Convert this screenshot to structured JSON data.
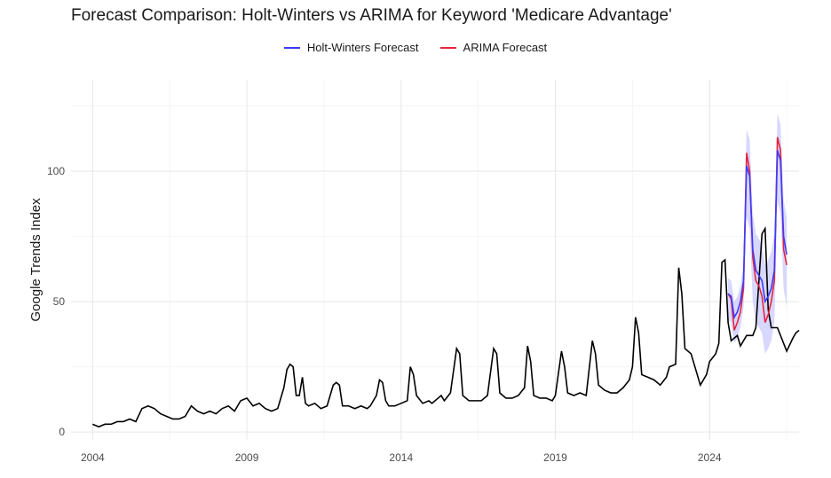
{
  "chart_data": {
    "type": "line",
    "title": "Forecast Comparison: Holt-Winters vs ARIMA for Keyword 'Medicare Advantage'",
    "xlabel": "",
    "ylabel": "Google Trends Index",
    "xlim": [
      2003.3,
      2026.9
    ],
    "ylim": [
      -3,
      135
    ],
    "x_ticks": [
      2004,
      2009,
      2014,
      2019,
      2024
    ],
    "y_ticks": [
      0,
      50,
      100
    ],
    "grid": true,
    "legend": "top-center",
    "series": [
      {
        "name": "",
        "color": "#000000",
        "points": [
          [
            2004.0,
            3
          ],
          [
            2004.2,
            2
          ],
          [
            2004.4,
            3
          ],
          [
            2004.6,
            3
          ],
          [
            2004.8,
            4
          ],
          [
            2005.0,
            4
          ],
          [
            2005.2,
            5
          ],
          [
            2005.4,
            4
          ],
          [
            2005.6,
            9
          ],
          [
            2005.8,
            10
          ],
          [
            2006.0,
            9
          ],
          [
            2006.2,
            7
          ],
          [
            2006.4,
            6
          ],
          [
            2006.6,
            5
          ],
          [
            2006.8,
            5
          ],
          [
            2007.0,
            6
          ],
          [
            2007.2,
            10
          ],
          [
            2007.4,
            8
          ],
          [
            2007.6,
            7
          ],
          [
            2007.8,
            8
          ],
          [
            2008.0,
            7
          ],
          [
            2008.2,
            9
          ],
          [
            2008.4,
            10
          ],
          [
            2008.6,
            8
          ],
          [
            2008.8,
            12
          ],
          [
            2009.0,
            13
          ],
          [
            2009.2,
            10
          ],
          [
            2009.4,
            11
          ],
          [
            2009.6,
            9
          ],
          [
            2009.8,
            8
          ],
          [
            2010.0,
            9
          ],
          [
            2010.2,
            17
          ],
          [
            2010.3,
            24
          ],
          [
            2010.4,
            26
          ],
          [
            2010.5,
            25
          ],
          [
            2010.6,
            14
          ],
          [
            2010.7,
            14
          ],
          [
            2010.8,
            21
          ],
          [
            2010.9,
            11
          ],
          [
            2011.0,
            10
          ],
          [
            2011.2,
            11
          ],
          [
            2011.4,
            9
          ],
          [
            2011.6,
            10
          ],
          [
            2011.8,
            18
          ],
          [
            2011.9,
            19
          ],
          [
            2012.0,
            18
          ],
          [
            2012.1,
            10
          ],
          [
            2012.3,
            10
          ],
          [
            2012.5,
            9
          ],
          [
            2012.7,
            10
          ],
          [
            2012.9,
            9
          ],
          [
            2013.0,
            10
          ],
          [
            2013.2,
            14
          ],
          [
            2013.3,
            20
          ],
          [
            2013.4,
            19
          ],
          [
            2013.5,
            12
          ],
          [
            2013.6,
            10
          ],
          [
            2013.8,
            10
          ],
          [
            2014.0,
            11
          ],
          [
            2014.2,
            12
          ],
          [
            2014.3,
            25
          ],
          [
            2014.4,
            22
          ],
          [
            2014.5,
            14
          ],
          [
            2014.7,
            11
          ],
          [
            2014.9,
            12
          ],
          [
            2015.0,
            11
          ],
          [
            2015.2,
            13
          ],
          [
            2015.3,
            14
          ],
          [
            2015.4,
            12
          ],
          [
            2015.6,
            15
          ],
          [
            2015.8,
            32
          ],
          [
            2015.9,
            30
          ],
          [
            2016.0,
            14
          ],
          [
            2016.2,
            12
          ],
          [
            2016.4,
            12
          ],
          [
            2016.6,
            12
          ],
          [
            2016.8,
            14
          ],
          [
            2017.0,
            32
          ],
          [
            2017.1,
            30
          ],
          [
            2017.2,
            15
          ],
          [
            2017.4,
            13
          ],
          [
            2017.6,
            13
          ],
          [
            2017.8,
            14
          ],
          [
            2018.0,
            17
          ],
          [
            2018.1,
            33
          ],
          [
            2018.2,
            27
          ],
          [
            2018.3,
            14
          ],
          [
            2018.5,
            13
          ],
          [
            2018.7,
            13
          ],
          [
            2018.9,
            12
          ],
          [
            2019.0,
            14
          ],
          [
            2019.2,
            31
          ],
          [
            2019.3,
            25
          ],
          [
            2019.4,
            15
          ],
          [
            2019.6,
            14
          ],
          [
            2019.8,
            15
          ],
          [
            2020.0,
            14
          ],
          [
            2020.2,
            35
          ],
          [
            2020.3,
            30
          ],
          [
            2020.4,
            18
          ],
          [
            2020.6,
            16
          ],
          [
            2020.8,
            15
          ],
          [
            2021.0,
            15
          ],
          [
            2021.2,
            17
          ],
          [
            2021.4,
            20
          ],
          [
            2021.5,
            25
          ],
          [
            2021.6,
            44
          ],
          [
            2021.7,
            38
          ],
          [
            2021.8,
            22
          ],
          [
            2022.0,
            21
          ],
          [
            2022.2,
            20
          ],
          [
            2022.4,
            18
          ],
          [
            2022.6,
            21
          ],
          [
            2022.7,
            25
          ],
          [
            2022.9,
            26
          ],
          [
            2023.0,
            63
          ],
          [
            2023.1,
            53
          ],
          [
            2023.2,
            32
          ],
          [
            2023.4,
            30
          ],
          [
            2023.6,
            22
          ],
          [
            2023.7,
            18
          ],
          [
            2023.9,
            22
          ],
          [
            2024.0,
            27
          ],
          [
            2024.2,
            30
          ],
          [
            2024.3,
            34
          ],
          [
            2024.4,
            65
          ],
          [
            2024.5,
            66
          ],
          [
            2024.6,
            42
          ],
          [
            2024.7,
            35
          ],
          [
            2024.9,
            37
          ],
          [
            2025.0,
            33
          ],
          [
            2025.2,
            37
          ],
          [
            2025.4,
            37
          ],
          [
            2025.5,
            40
          ],
          [
            2025.7,
            76
          ],
          [
            2025.8,
            78
          ],
          [
            2025.9,
            47
          ],
          [
            2026.0,
            40
          ],
          [
            2026.2,
            40
          ],
          [
            2026.4,
            34
          ],
          [
            2026.5,
            31
          ],
          [
            2026.7,
            36
          ],
          [
            2026.8,
            38
          ],
          [
            2026.9,
            39
          ]
        ]
      },
      {
        "name": "Holt-Winters Forecast",
        "color": "#3b3bff",
        "points": []
      },
      {
        "name": "ARIMA Forecast",
        "color": "#e8243c",
        "points": []
      }
    ]
  }
}
